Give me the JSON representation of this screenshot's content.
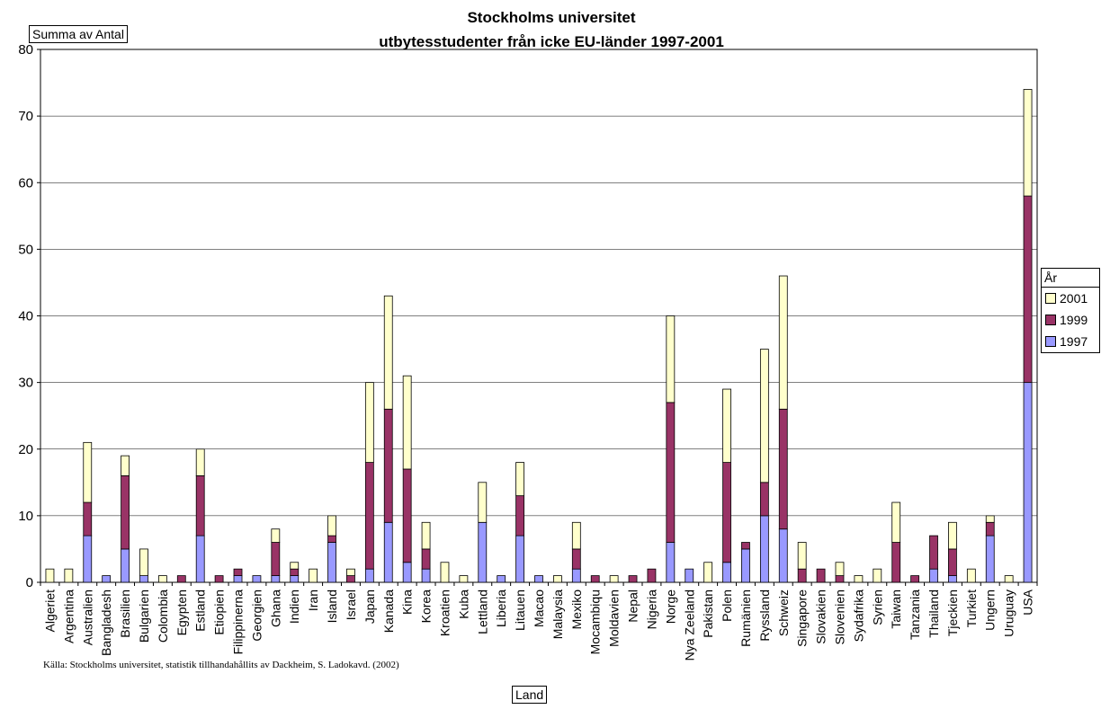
{
  "colors": {
    "y1997": "#9999ff",
    "y1999": "#993366",
    "y2001": "#ffffcc"
  },
  "labels": {
    "y_box": "Summa av Antal",
    "x_box": "Land",
    "source": "Källa: Stockholms universitet, statistik tillhandahållits av Dackheim, S. Ladokavd. (2002)"
  },
  "legend": {
    "title": "År",
    "items": [
      {
        "name": "2001",
        "color": "#ffffcc"
      },
      {
        "name": "1999",
        "color": "#993366"
      },
      {
        "name": "1997",
        "color": "#9999ff"
      }
    ]
  },
  "chart_data": {
    "type": "bar",
    "stacked": true,
    "title": "Stockholms universitet",
    "subtitle": "utbytesstudenter från icke EU-länder 1997-2001",
    "xlabel": "Land",
    "ylabel": "Summa av Antal",
    "ylim": [
      0,
      80
    ],
    "yticks": [
      0,
      10,
      20,
      30,
      40,
      50,
      60,
      70,
      80
    ],
    "grid": true,
    "legend_position": "right",
    "categories": [
      "Algeriet",
      "Argentina",
      "Australien",
      "Bangladesh",
      "Brasilien",
      "Bulgarien",
      "Colombia",
      "Egypten",
      "Estland",
      "Etiopien",
      "Filippinerna",
      "Georgien",
      "Ghana",
      "Indien",
      "Iran",
      "Island",
      "Israel",
      "Japan",
      "Kanada",
      "Kina",
      "Korea",
      "Kroatien",
      "Kuba",
      "Lettland",
      "Liberia",
      "Litauen",
      "Macao",
      "Malaysia",
      "Mexiko",
      "Mocambiqu",
      "Moldavien",
      "Nepal",
      "Nigeria",
      "Norge",
      "Nya Zeeland",
      "Pakistan",
      "Polen",
      "Rumänien",
      "Ryssland",
      "Schweiz",
      "Singapore",
      "Slovakien",
      "Slovenien",
      "Sydafrika",
      "Syrien",
      "Taiwan",
      "Tanzania",
      "Thailand",
      "Tjeckien",
      "Turkiet",
      "Ungern",
      "Uruguay",
      "USA"
    ],
    "series": [
      {
        "name": "1997",
        "values": [
          0,
          0,
          7,
          1,
          5,
          1,
          0,
          0,
          7,
          0,
          1,
          1,
          1,
          1,
          0,
          6,
          0,
          2,
          9,
          3,
          2,
          0,
          0,
          9,
          1,
          7,
          1,
          0,
          2,
          0,
          0,
          0,
          0,
          6,
          2,
          0,
          3,
          5,
          10,
          8,
          0,
          0,
          0,
          0,
          0,
          0,
          0,
          2,
          1,
          0,
          7,
          0,
          30
        ]
      },
      {
        "name": "1999",
        "values": [
          0,
          0,
          5,
          0,
          11,
          0,
          0,
          1,
          9,
          1,
          1,
          0,
          5,
          1,
          0,
          1,
          1,
          16,
          17,
          14,
          3,
          0,
          0,
          0,
          0,
          6,
          0,
          0,
          3,
          1,
          0,
          1,
          2,
          21,
          0,
          0,
          15,
          1,
          5,
          18,
          2,
          2,
          1,
          0,
          0,
          6,
          1,
          5,
          4,
          0,
          2,
          0,
          28
        ]
      },
      {
        "name": "2001",
        "values": [
          2,
          2,
          9,
          0,
          3,
          4,
          1,
          0,
          4,
          0,
          0,
          0,
          2,
          1,
          2,
          3,
          1,
          12,
          17,
          14,
          4,
          3,
          1,
          6,
          0,
          5,
          0,
          1,
          4,
          0,
          1,
          0,
          0,
          13,
          0,
          3,
          11,
          0,
          20,
          20,
          4,
          0,
          2,
          1,
          2,
          6,
          0,
          0,
          4,
          2,
          1,
          1,
          16
        ]
      }
    ]
  }
}
